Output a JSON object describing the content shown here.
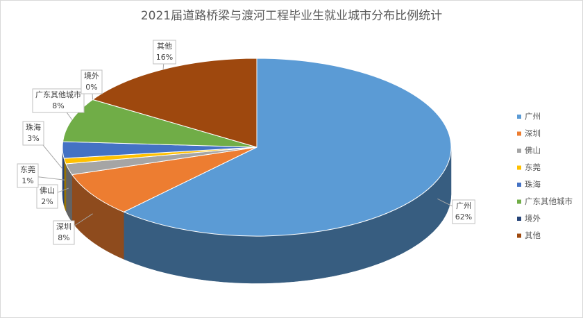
{
  "chart_data": {
    "type": "pie3d",
    "title": "2021届道路桥梁与渡河工程毕业生就业城市分布比例统计",
    "categories": [
      "广州",
      "深圳",
      "佛山",
      "东莞",
      "珠海",
      "广东其他城市",
      "境外",
      "其他"
    ],
    "values": [
      62,
      8,
      2,
      1,
      3,
      8,
      0,
      16
    ],
    "value_labels": [
      "62%",
      "8%",
      "2%",
      "1%",
      "3%",
      "8%",
      "0%",
      "16%"
    ],
    "colors": [
      "#5b9bd5",
      "#ed7d31",
      "#a5a5a5",
      "#ffc000",
      "#4472c4",
      "#70ad47",
      "#264478",
      "#9e480e"
    ],
    "legend": "right"
  }
}
